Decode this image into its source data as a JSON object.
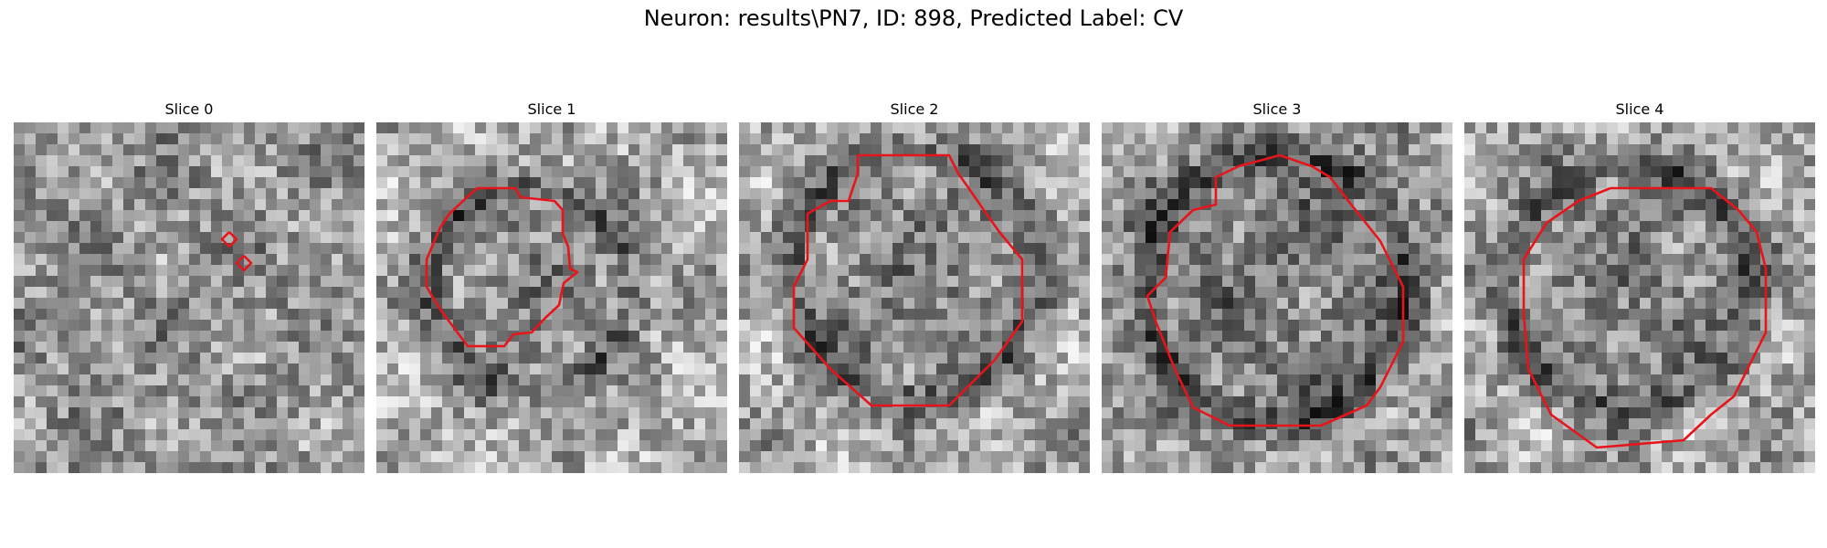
{
  "figure": {
    "title": "Neuron: results\\PN7, ID: 898, Predicted Label: CV"
  },
  "slices": [
    {
      "title": "Slice 0",
      "contour": "small marks"
    },
    {
      "title": "Slice 1",
      "contour": "ring"
    },
    {
      "title": "Slice 2",
      "contour": "ring"
    },
    {
      "title": "Slice 3",
      "contour": "ring"
    },
    {
      "title": "Slice 4",
      "contour": "ring"
    }
  ],
  "colors": {
    "contour": "#e8141b",
    "background": "#ffffff"
  }
}
